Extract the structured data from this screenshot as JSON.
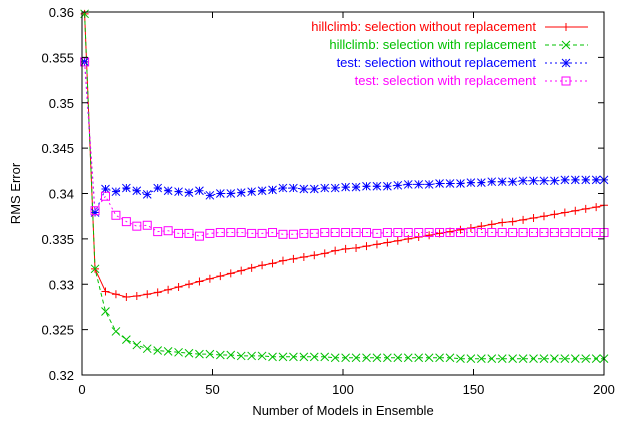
{
  "chart_data": {
    "type": "line",
    "xlabel": "Number of Models in Ensemble",
    "ylabel": "RMS Error",
    "xlim": [
      0,
      200
    ],
    "ylim": [
      0.32,
      0.36
    ],
    "xticks": [
      "0",
      "50",
      "100",
      "150",
      "200"
    ],
    "yticks": [
      "0.32",
      "0.325",
      "0.33",
      "0.335",
      "0.34",
      "0.345",
      "0.35",
      "0.355",
      "0.36"
    ],
    "grid": false,
    "legend_position": "top-right",
    "series": [
      {
        "name": "hillclimb: selection without replacement",
        "color": "#ff0000",
        "marker": "plus",
        "dash": "solid",
        "points": [
          [
            1,
            0.3598
          ],
          [
            5,
            0.3317
          ],
          [
            9,
            0.3292
          ],
          [
            13,
            0.3289
          ],
          [
            17,
            0.3286
          ],
          [
            21,
            0.3287
          ],
          [
            25,
            0.3289
          ],
          [
            29,
            0.3291
          ],
          [
            33,
            0.3294
          ],
          [
            37,
            0.3297
          ],
          [
            41,
            0.33
          ],
          [
            45,
            0.3303
          ],
          [
            49,
            0.3306
          ],
          [
            53,
            0.3309
          ],
          [
            57,
            0.3312
          ],
          [
            61,
            0.3315
          ],
          [
            65,
            0.3318
          ],
          [
            69,
            0.3321
          ],
          [
            73,
            0.3323
          ],
          [
            77,
            0.3326
          ],
          [
            81,
            0.3328
          ],
          [
            85,
            0.333
          ],
          [
            89,
            0.3332
          ],
          [
            93,
            0.3334
          ],
          [
            97,
            0.3337
          ],
          [
            101,
            0.3339
          ],
          [
            105,
            0.334
          ],
          [
            109,
            0.3342
          ],
          [
            113,
            0.3344
          ],
          [
            117,
            0.3346
          ],
          [
            121,
            0.3348
          ],
          [
            125,
            0.335
          ],
          [
            129,
            0.3352
          ],
          [
            133,
            0.3354
          ],
          [
            137,
            0.3356
          ],
          [
            141,
            0.3358
          ],
          [
            145,
            0.336
          ],
          [
            149,
            0.3362
          ],
          [
            153,
            0.3364
          ],
          [
            157,
            0.3366
          ],
          [
            161,
            0.3368
          ],
          [
            165,
            0.3369
          ],
          [
            169,
            0.3371
          ],
          [
            173,
            0.3373
          ],
          [
            177,
            0.3375
          ],
          [
            181,
            0.3377
          ],
          [
            185,
            0.3379
          ],
          [
            189,
            0.3381
          ],
          [
            193,
            0.3383
          ],
          [
            197,
            0.3385
          ],
          [
            200,
            0.3387
          ]
        ]
      },
      {
        "name": "hillclimb: selection with replacement",
        "color": "#00c000",
        "marker": "x",
        "dash": "dashed",
        "points": [
          [
            1,
            0.3598
          ],
          [
            5,
            0.3317
          ],
          [
            9,
            0.327
          ],
          [
            13,
            0.3248
          ],
          [
            17,
            0.3239
          ],
          [
            21,
            0.3233
          ],
          [
            25,
            0.3229
          ],
          [
            29,
            0.3227
          ],
          [
            33,
            0.3226
          ],
          [
            37,
            0.3225
          ],
          [
            41,
            0.3224
          ],
          [
            45,
            0.3223
          ],
          [
            49,
            0.3223
          ],
          [
            53,
            0.3222
          ],
          [
            57,
            0.3222
          ],
          [
            61,
            0.3221
          ],
          [
            65,
            0.3221
          ],
          [
            69,
            0.3221
          ],
          [
            73,
            0.322
          ],
          [
            77,
            0.322
          ],
          [
            81,
            0.322
          ],
          [
            85,
            0.322
          ],
          [
            89,
            0.322
          ],
          [
            93,
            0.322
          ],
          [
            97,
            0.3219
          ],
          [
            101,
            0.3219
          ],
          [
            105,
            0.3219
          ],
          [
            109,
            0.3219
          ],
          [
            113,
            0.3219
          ],
          [
            117,
            0.3219
          ],
          [
            121,
            0.3219
          ],
          [
            125,
            0.3219
          ],
          [
            129,
            0.3219
          ],
          [
            133,
            0.3219
          ],
          [
            137,
            0.3219
          ],
          [
            141,
            0.3219
          ],
          [
            145,
            0.3218
          ],
          [
            149,
            0.3218
          ],
          [
            153,
            0.3218
          ],
          [
            157,
            0.3218
          ],
          [
            161,
            0.3218
          ],
          [
            165,
            0.3218
          ],
          [
            169,
            0.3218
          ],
          [
            173,
            0.3218
          ],
          [
            177,
            0.3218
          ],
          [
            181,
            0.3218
          ],
          [
            185,
            0.3218
          ],
          [
            189,
            0.3218
          ],
          [
            193,
            0.3218
          ],
          [
            197,
            0.3218
          ],
          [
            200,
            0.3218
          ]
        ]
      },
      {
        "name": "test: selection without replacement",
        "color": "#0000ff",
        "marker": "star",
        "dash": "dotted",
        "points": [
          [
            1,
            0.3545
          ],
          [
            5,
            0.3379
          ],
          [
            9,
            0.3405
          ],
          [
            13,
            0.3402
          ],
          [
            17,
            0.3406
          ],
          [
            21,
            0.3403
          ],
          [
            25,
            0.3399
          ],
          [
            29,
            0.3406
          ],
          [
            33,
            0.3403
          ],
          [
            37,
            0.3402
          ],
          [
            41,
            0.3401
          ],
          [
            45,
            0.3403
          ],
          [
            49,
            0.3398
          ],
          [
            53,
            0.34
          ],
          [
            57,
            0.34
          ],
          [
            61,
            0.3401
          ],
          [
            65,
            0.3402
          ],
          [
            69,
            0.3403
          ],
          [
            73,
            0.3404
          ],
          [
            77,
            0.3406
          ],
          [
            81,
            0.3406
          ],
          [
            85,
            0.3405
          ],
          [
            89,
            0.3405
          ],
          [
            93,
            0.3406
          ],
          [
            97,
            0.3406
          ],
          [
            101,
            0.3407
          ],
          [
            105,
            0.3407
          ],
          [
            109,
            0.3408
          ],
          [
            113,
            0.3408
          ],
          [
            117,
            0.3408
          ],
          [
            121,
            0.3409
          ],
          [
            125,
            0.341
          ],
          [
            129,
            0.341
          ],
          [
            133,
            0.341
          ],
          [
            137,
            0.3411
          ],
          [
            141,
            0.3411
          ],
          [
            145,
            0.3411
          ],
          [
            149,
            0.3412
          ],
          [
            153,
            0.3412
          ],
          [
            157,
            0.3413
          ],
          [
            161,
            0.3413
          ],
          [
            165,
            0.3413
          ],
          [
            169,
            0.3414
          ],
          [
            173,
            0.3414
          ],
          [
            177,
            0.3414
          ],
          [
            181,
            0.3414
          ],
          [
            185,
            0.3415
          ],
          [
            189,
            0.3415
          ],
          [
            193,
            0.3415
          ],
          [
            197,
            0.3415
          ],
          [
            200,
            0.3415
          ]
        ]
      },
      {
        "name": "test: selection with replacement",
        "color": "#ff00ff",
        "marker": "square",
        "dash": "dotted",
        "points": [
          [
            1,
            0.3545
          ],
          [
            5,
            0.3381
          ],
          [
            9,
            0.3397
          ],
          [
            13,
            0.3376
          ],
          [
            17,
            0.3369
          ],
          [
            21,
            0.3364
          ],
          [
            25,
            0.3365
          ],
          [
            29,
            0.3358
          ],
          [
            33,
            0.3359
          ],
          [
            37,
            0.3356
          ],
          [
            41,
            0.3356
          ],
          [
            45,
            0.3353
          ],
          [
            49,
            0.3356
          ],
          [
            53,
            0.3357
          ],
          [
            57,
            0.3357
          ],
          [
            61,
            0.3357
          ],
          [
            65,
            0.3356
          ],
          [
            69,
            0.3356
          ],
          [
            73,
            0.3357
          ],
          [
            77,
            0.3355
          ],
          [
            81,
            0.3355
          ],
          [
            85,
            0.3356
          ],
          [
            89,
            0.3356
          ],
          [
            93,
            0.3357
          ],
          [
            97,
            0.3357
          ],
          [
            101,
            0.3357
          ],
          [
            105,
            0.3357
          ],
          [
            109,
            0.3357
          ],
          [
            113,
            0.3356
          ],
          [
            117,
            0.3357
          ],
          [
            121,
            0.3357
          ],
          [
            125,
            0.3357
          ],
          [
            129,
            0.3357
          ],
          [
            133,
            0.3357
          ],
          [
            137,
            0.3357
          ],
          [
            141,
            0.3357
          ],
          [
            145,
            0.3357
          ],
          [
            149,
            0.3357
          ],
          [
            153,
            0.3357
          ],
          [
            157,
            0.3357
          ],
          [
            161,
            0.3357
          ],
          [
            165,
            0.3357
          ],
          [
            169,
            0.3357
          ],
          [
            173,
            0.3357
          ],
          [
            177,
            0.3357
          ],
          [
            181,
            0.3357
          ],
          [
            185,
            0.3357
          ],
          [
            189,
            0.3357
          ],
          [
            193,
            0.3357
          ],
          [
            197,
            0.3357
          ],
          [
            200,
            0.3357
          ]
        ]
      }
    ]
  }
}
